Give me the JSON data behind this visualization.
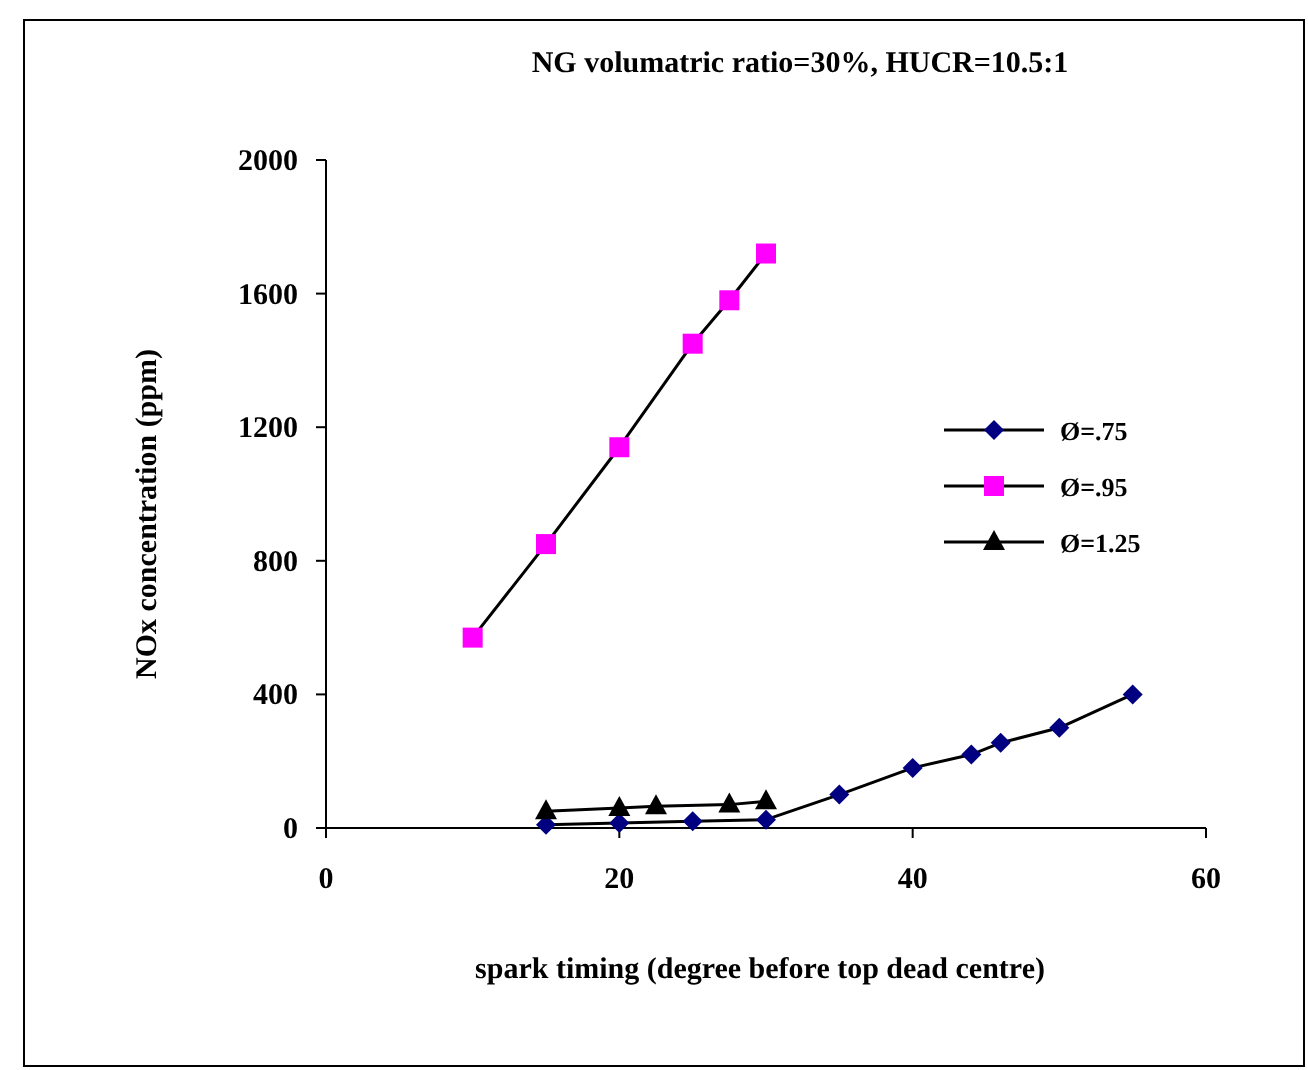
{
  "chart_data": {
    "type": "line",
    "title": "NG volumatric ratio=30%, HUCR=10.5:1",
    "xlabel": "spark timing (degree before top dead centre)",
    "ylabel": "NOx concentration (ppm)",
    "xlim": [
      0,
      60
    ],
    "xticks": [
      0,
      20,
      40,
      60
    ],
    "ylim": [
      0,
      2000
    ],
    "yticks": [
      0,
      400,
      800,
      1200,
      1600,
      2000
    ],
    "grid": false,
    "legend": "right",
    "line_style": "solid",
    "series": [
      {
        "name": "Ø=.75",
        "color": "#000080",
        "marker": "diamond",
        "x": [
          15,
          20,
          25,
          30,
          35,
          40,
          44,
          46,
          50,
          55
        ],
        "values": [
          10,
          15,
          20,
          25,
          100,
          180,
          220,
          255,
          300,
          400
        ]
      },
      {
        "name": "Ø=.95",
        "color": "#ff00ff",
        "marker": "square",
        "x": [
          10,
          15,
          20,
          25,
          27.5,
          30
        ],
        "values": [
          570,
          850,
          1140,
          1450,
          1580,
          1720
        ]
      },
      {
        "name": "Ø=1.25",
        "color": "#000000",
        "marker": "triangle",
        "x": [
          15,
          20,
          22.5,
          27.5,
          30
        ],
        "values": [
          50,
          60,
          65,
          70,
          80
        ]
      }
    ]
  }
}
